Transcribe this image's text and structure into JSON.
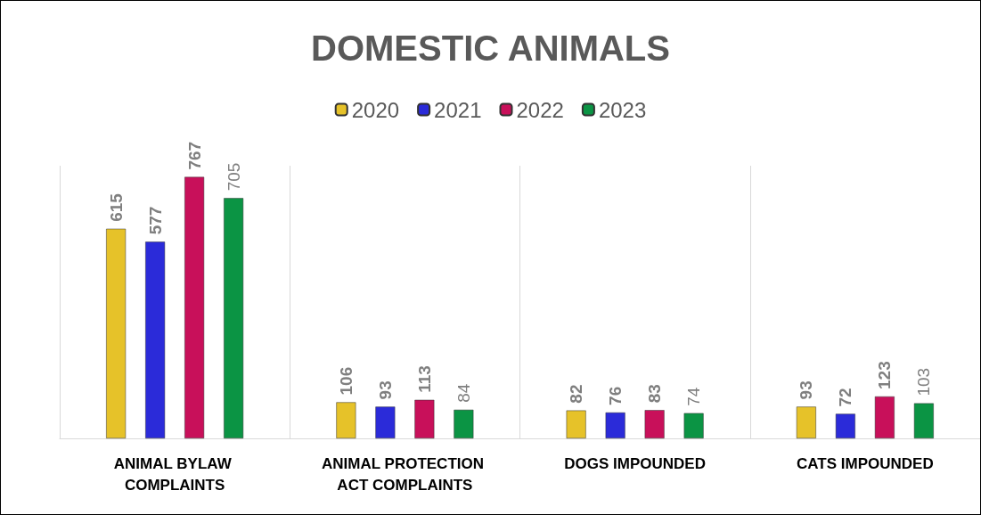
{
  "chart_data": {
    "type": "bar",
    "title": "DOMESTIC ANIMALS",
    "categories": [
      "ANIMAL BYLAW COMPLAINTS",
      "ANIMAL PROTECTION ACT COMPLAINTS",
      "DOGS IMPOUNDED",
      "CATS IMPOUNDED"
    ],
    "series": [
      {
        "name": "2020",
        "color": "#e6c229",
        "values": [
          615,
          106,
          82,
          93
        ]
      },
      {
        "name": "2021",
        "color": "#2b2bd9",
        "values": [
          577,
          93,
          76,
          72
        ]
      },
      {
        "name": "2022",
        "color": "#c8105a",
        "values": [
          767,
          113,
          83,
          123
        ]
      },
      {
        "name": "2023",
        "color": "#0b9444",
        "values": [
          705,
          84,
          74,
          103
        ]
      }
    ],
    "data_labels": true,
    "grid": "x",
    "legend": "top"
  }
}
